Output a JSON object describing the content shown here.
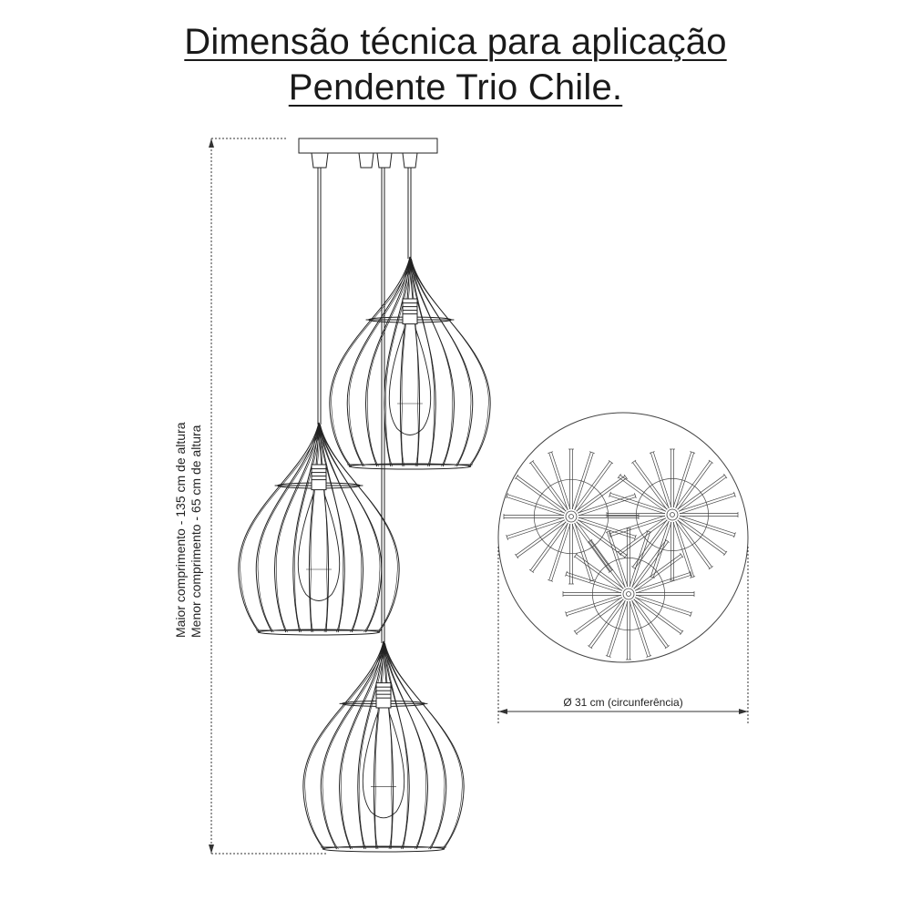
{
  "diagram": {
    "title_line1": "Dimensão técnica para aplicação",
    "title_line2": "Pendente Trio Chile.",
    "label_max": "Maior comprimento - 135 cm de altura",
    "label_min": "Menor comprimento - 65 cm de altura",
    "diameter_label": "Ø 31 cm (circunferência)"
  }
}
